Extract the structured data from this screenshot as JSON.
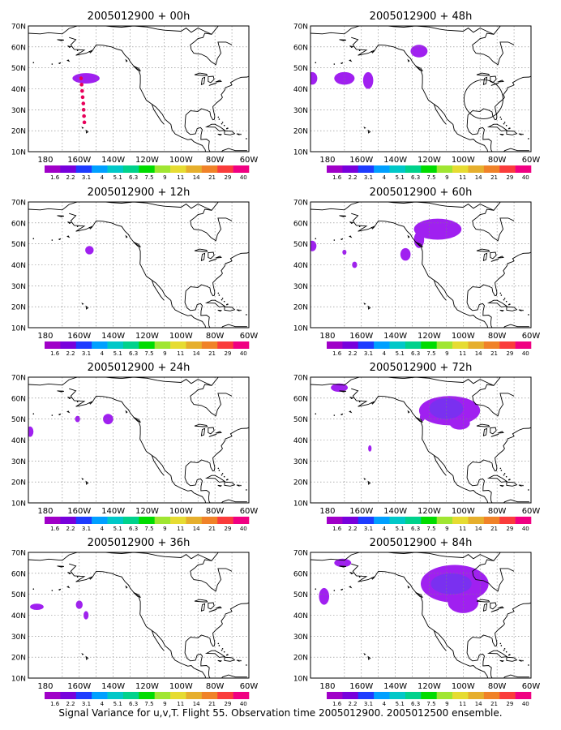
{
  "caption": "Signal Variance for u,v,T. Flight 55. Observation time 2005012900. 2005012500 ensemble.",
  "lat_ticks": [
    "70N",
    "60N",
    "50N",
    "40N",
    "30N",
    "20N",
    "10N"
  ],
  "lon_ticks": [
    "180",
    "160W",
    "140W",
    "120W",
    "100W",
    "80W",
    "60W"
  ],
  "colorbar": {
    "labels": [
      "1.6",
      "2.2",
      "3.1",
      "4",
      "5.1",
      "6.3",
      "7.5",
      "9",
      "11",
      "14",
      "21",
      "29",
      "40"
    ],
    "colors": [
      "#a000c8",
      "#7800dc",
      "#1e3cff",
      "#00a0ff",
      "#00c8c8",
      "#00d28c",
      "#00dc00",
      "#a0e632",
      "#e6dc32",
      "#e6af2d",
      "#f08228",
      "#fa3c3c",
      "#f00082"
    ]
  },
  "panels": [
    {
      "title": "2005012900 + 00h",
      "lead": "00h"
    },
    {
      "title": "2005012900 + 12h",
      "lead": "12h"
    },
    {
      "title": "2005012900 + 24h",
      "lead": "24h"
    },
    {
      "title": "2005012900 + 36h",
      "lead": "36h"
    },
    {
      "title": "2005012900 + 48h",
      "lead": "48h"
    },
    {
      "title": "2005012900 + 60h",
      "lead": "60h"
    },
    {
      "title": "2005012900 + 72h",
      "lead": "72h"
    },
    {
      "title": "2005012900 + 84h",
      "lead": "84h"
    }
  ],
  "map_extent": {
    "lon": [
      -190,
      -60
    ],
    "lat": [
      10,
      70
    ]
  },
  "signal_regions": {
    "00h": {
      "flight_track_points": [
        [
          -159,
          45
        ],
        [
          -158.6,
          42
        ],
        [
          -158.3,
          39
        ],
        [
          -158,
          36
        ],
        [
          -157.6,
          33
        ],
        [
          -157.4,
          30
        ],
        [
          -157.2,
          27
        ],
        [
          -157,
          24
        ]
      ],
      "blobs": [
        {
          "lon": -156,
          "lat": 45,
          "rlon": 8,
          "rlat": 2.5,
          "level": 0
        }
      ]
    },
    "12h": {
      "blobs": [
        {
          "lon": -154,
          "lat": 47,
          "rlon": 2.5,
          "rlat": 2,
          "level": 0
        }
      ]
    },
    "24h": {
      "blobs": [
        {
          "lon": -189,
          "lat": 44,
          "rlon": 2,
          "rlat": 2.5,
          "level": 0
        },
        {
          "lon": -161,
          "lat": 50,
          "rlon": 1.5,
          "rlat": 1.5,
          "level": 0
        },
        {
          "lon": -143,
          "lat": 50,
          "rlon": 3,
          "rlat": 2.5,
          "level": 0
        }
      ]
    },
    "36h": {
      "blobs": [
        {
          "lon": -185,
          "lat": 44,
          "rlon": 4,
          "rlat": 1.5,
          "level": 0
        },
        {
          "lon": -160,
          "lat": 45,
          "rlon": 2,
          "rlat": 2,
          "level": 0
        },
        {
          "lon": -156,
          "lat": 40,
          "rlon": 1.5,
          "rlat": 2,
          "level": 0
        }
      ]
    },
    "48h": {
      "blobs": [
        {
          "lon": -189,
          "lat": 45,
          "rlon": 3,
          "rlat": 3,
          "level": 0
        },
        {
          "lon": -170,
          "lat": 45,
          "rlon": 6,
          "rlat": 3,
          "level": 0
        },
        {
          "lon": -156,
          "lat": 44,
          "rlon": 3,
          "rlat": 4,
          "level": 0
        },
        {
          "lon": -126,
          "lat": 58,
          "rlon": 5,
          "rlat": 3,
          "level": 0
        }
      ]
    },
    "60h": {
      "blobs": [
        {
          "lon": -189,
          "lat": 49,
          "rlon": 2.5,
          "rlat": 2.5,
          "level": 0
        },
        {
          "lon": -170,
          "lat": 46,
          "rlon": 1.2,
          "rlat": 1.2,
          "level": 0
        },
        {
          "lon": -164,
          "lat": 40,
          "rlon": 1.5,
          "rlat": 1.5,
          "level": 0
        },
        {
          "lon": -134,
          "lat": 45,
          "rlon": 3,
          "rlat": 3,
          "level": 0
        },
        {
          "lon": -126,
          "lat": 52,
          "rlon": 3,
          "rlat": 4,
          "level": 0
        },
        {
          "lon": -115,
          "lat": 57,
          "rlon": 14,
          "rlat": 5,
          "level": 0
        }
      ]
    },
    "72h": {
      "blobs": [
        {
          "lon": -173,
          "lat": 65,
          "rlon": 5,
          "rlat": 2,
          "level": 0
        },
        {
          "lon": -155,
          "lat": 36,
          "rlon": 1,
          "rlat": 1.5,
          "level": 0
        },
        {
          "lon": -124,
          "lat": 51,
          "rlon": 1.5,
          "rlat": 2,
          "level": 0
        },
        {
          "lon": -108,
          "lat": 54,
          "rlon": 18,
          "rlat": 7,
          "level": 0
        },
        {
          "lon": -102,
          "lat": 48,
          "rlon": 6,
          "rlat": 3,
          "level": 0
        },
        {
          "lon": -110,
          "lat": 55,
          "rlon": 10,
          "rlat": 5,
          "level": 1
        }
      ]
    },
    "84h": {
      "blobs": [
        {
          "lon": -171,
          "lat": 65,
          "rlon": 5,
          "rlat": 2,
          "level": 0
        },
        {
          "lon": -182,
          "lat": 49,
          "rlon": 3,
          "rlat": 4,
          "level": 0
        },
        {
          "lon": -105,
          "lat": 55,
          "rlon": 20,
          "rlat": 9,
          "level": 0
        },
        {
          "lon": -100,
          "lat": 46,
          "rlon": 9,
          "rlat": 5,
          "level": 0
        },
        {
          "lon": -107,
          "lat": 55,
          "rlon": 12,
          "rlat": 5,
          "level": 1
        }
      ]
    }
  }
}
